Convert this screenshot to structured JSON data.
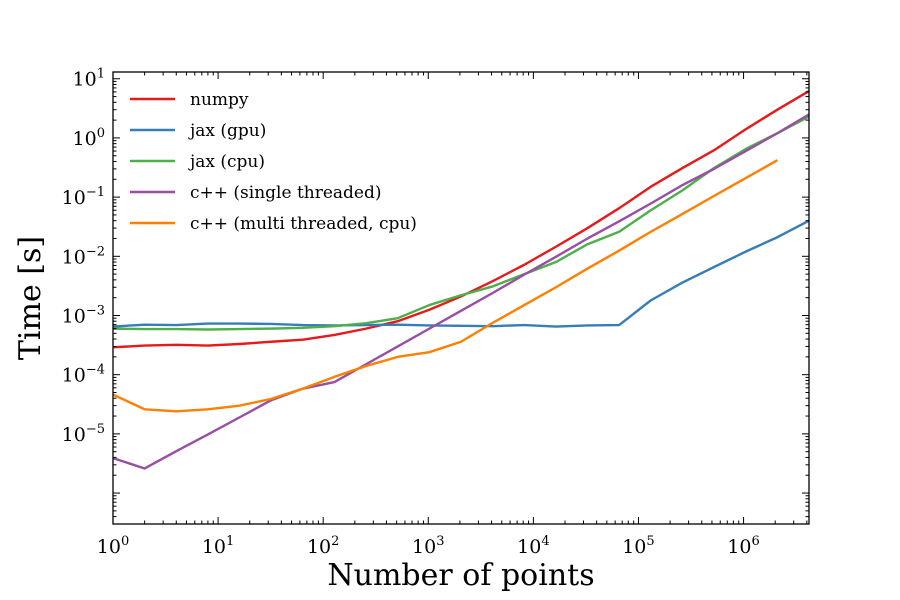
{
  "chart_data": {
    "type": "line",
    "title": "",
    "xlabel": "Number of points",
    "ylabel": "Time [s]",
    "xscale": "log",
    "yscale": "log",
    "xlim": [
      1,
      4194304
    ],
    "ylim": [
      3e-07,
      13
    ],
    "grid": false,
    "legend_position": "top-left",
    "x_ticks": [
      {
        "value": 1,
        "base": "10",
        "exp": "0"
      },
      {
        "value": 10,
        "base": "10",
        "exp": "1"
      },
      {
        "value": 100,
        "base": "10",
        "exp": "2"
      },
      {
        "value": 1000,
        "base": "10",
        "exp": "3"
      },
      {
        "value": 10000,
        "base": "10",
        "exp": "4"
      },
      {
        "value": 100000,
        "base": "10",
        "exp": "5"
      },
      {
        "value": 1000000,
        "base": "10",
        "exp": "6"
      }
    ],
    "y_ticks": [
      {
        "value": 1e-05,
        "base": "10",
        "exp": "−5"
      },
      {
        "value": 0.0001,
        "base": "10",
        "exp": "−4"
      },
      {
        "value": 0.001,
        "base": "10",
        "exp": "−3"
      },
      {
        "value": 0.01,
        "base": "10",
        "exp": "−2"
      },
      {
        "value": 0.1,
        "base": "10",
        "exp": "−1"
      },
      {
        "value": 1,
        "base": "10",
        "exp": "0"
      },
      {
        "value": 10,
        "base": "10",
        "exp": "1"
      }
    ],
    "series": [
      {
        "name": "numpy",
        "color": "#e41a1c",
        "x": [
          1,
          2,
          4,
          8,
          16,
          32,
          64,
          128,
          256,
          512,
          1024,
          2048,
          4096,
          8192,
          16384,
          32768,
          65536,
          131072,
          262144,
          524288,
          1048576,
          2097152,
          4194304
        ],
        "y": [
          0.00029,
          0.00031,
          0.00032,
          0.00031,
          0.00033,
          0.00036,
          0.00039,
          0.00047,
          0.0006,
          0.0008,
          0.00125,
          0.0021,
          0.0038,
          0.0072,
          0.0145,
          0.03,
          0.065,
          0.15,
          0.31,
          0.62,
          1.4,
          3.0,
          6.2
        ]
      },
      {
        "name": "jax (gpu)",
        "color": "#377eb8",
        "x": [
          1,
          2,
          4,
          8,
          16,
          32,
          64,
          128,
          256,
          512,
          1024,
          2048,
          4096,
          8192,
          16384,
          32768,
          65536,
          131072,
          262144,
          524288,
          1048576,
          2097152,
          4194304
        ],
        "y": [
          0.00065,
          0.0007,
          0.00069,
          0.00073,
          0.00073,
          0.00072,
          0.00069,
          0.00068,
          0.00069,
          0.0007,
          0.00068,
          0.00067,
          0.00066,
          0.00069,
          0.00065,
          0.00068,
          0.00069,
          0.0018,
          0.0036,
          0.0066,
          0.012,
          0.021,
          0.04
        ]
      },
      {
        "name": "jax (cpu)",
        "color": "#4daf4a",
        "x": [
          1,
          2,
          4,
          8,
          16,
          32,
          64,
          128,
          256,
          512,
          1024,
          2048,
          4096,
          8192,
          16384,
          32768,
          65536,
          131072,
          262144,
          524288,
          1048576,
          2097152,
          4194304
        ],
        "y": [
          0.0006,
          0.00059,
          0.00059,
          0.00058,
          0.00059,
          0.0006,
          0.00062,
          0.00066,
          0.00074,
          0.0009,
          0.0015,
          0.0022,
          0.0031,
          0.005,
          0.008,
          0.016,
          0.026,
          0.06,
          0.13,
          0.31,
          0.65,
          1.2,
          2.3
        ]
      },
      {
        "name": "c++ (single threaded)",
        "color": "#984ea3",
        "x": [
          1,
          2,
          4,
          8,
          16,
          32,
          64,
          128,
          256,
          512,
          1024,
          2048,
          4096,
          8192,
          16384,
          32768,
          65536,
          131072,
          262144,
          524288,
          1048576,
          2097152,
          4194304
        ],
        "y": [
          3.9e-06,
          2.6e-06,
          5.1e-06,
          9.8e-06,
          1.9e-05,
          3.7e-05,
          5.8e-05,
          7.5e-05,
          0.00015,
          0.0003,
          0.0006,
          0.0012,
          0.0024,
          0.0049,
          0.0098,
          0.02,
          0.039,
          0.078,
          0.16,
          0.3,
          0.6,
          1.2,
          2.5
        ]
      },
      {
        "name": "c++ (multi threaded, cpu)",
        "color": "#ff7f00",
        "x": [
          1,
          2,
          4,
          8,
          16,
          32,
          64,
          128,
          256,
          512,
          1024,
          2048,
          4096,
          8192,
          16384,
          32768,
          65536,
          131072,
          262144,
          524288,
          1048576,
          2097152
        ],
        "y": [
          4.6e-05,
          2.6e-05,
          2.4e-05,
          2.6e-05,
          3e-05,
          3.9e-05,
          5.8e-05,
          9.2e-05,
          0.00014,
          0.0002,
          0.00024,
          0.00036,
          0.00075,
          0.0015,
          0.003,
          0.0062,
          0.0125,
          0.026,
          0.052,
          0.105,
          0.21,
          0.42
        ]
      }
    ]
  }
}
